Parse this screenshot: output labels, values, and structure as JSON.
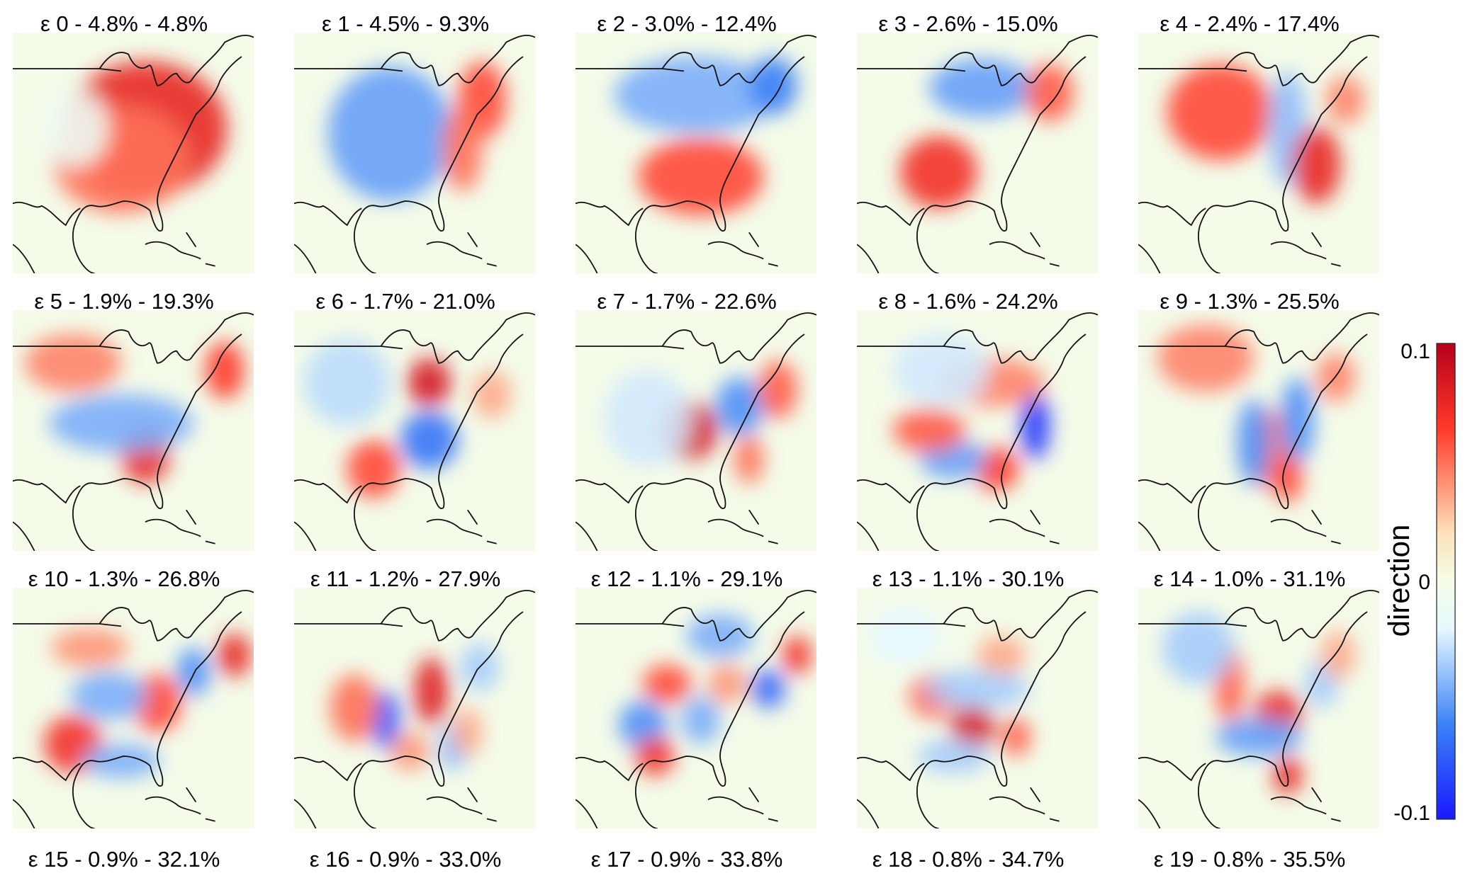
{
  "chart_data": {
    "type": "heatmap",
    "description_grid": "5 columns x 4 rows of map panels; the fourth row is cropped so only its titles are visible",
    "value_range": [
      -0.1,
      0.1
    ],
    "colormap": [
      "#1a1aff",
      "#3b82f6",
      "#e6f8ff",
      "#f5fde6",
      "#fce3bb",
      "#ff3a2a",
      "#b5001a"
    ],
    "colorbar": {
      "label": "direction",
      "tick_labels": [
        "0.1",
        "0",
        "-0.1"
      ],
      "ticks": [
        0.1,
        0,
        -0.1
      ]
    },
    "panels": [
      {
        "title": "ε 0 - 4.8% - 4.8%",
        "variance_pct": 4.8,
        "cumulative_pct": 4.8,
        "blobs": [
          [
            0.55,
            0.4,
            0.34,
            0.28,
            0.75
          ],
          [
            0.45,
            0.53,
            0.28,
            0.22,
            0.5
          ],
          [
            0.26,
            0.4,
            0.14,
            0.16,
            -0.1
          ]
        ]
      },
      {
        "title": "ε 1 - 4.5% - 9.3%",
        "variance_pct": 4.5,
        "cumulative_pct": 9.3,
        "blobs": [
          [
            0.4,
            0.42,
            0.26,
            0.28,
            -0.5
          ],
          [
            0.78,
            0.28,
            0.1,
            0.16,
            0.6
          ],
          [
            0.7,
            0.48,
            0.08,
            0.18,
            0.5
          ]
        ]
      },
      {
        "title": "ε 2 - 3.0% - 12.4%",
        "variance_pct": 3.0,
        "cumulative_pct": 12.4,
        "blobs": [
          [
            0.52,
            0.6,
            0.26,
            0.16,
            0.6
          ],
          [
            0.5,
            0.26,
            0.34,
            0.16,
            -0.45
          ],
          [
            0.82,
            0.22,
            0.1,
            0.12,
            -0.6
          ]
        ]
      },
      {
        "title": "ε 3 - 2.6% - 15.0%",
        "variance_pct": 2.6,
        "cumulative_pct": 15.0,
        "blobs": [
          [
            0.34,
            0.58,
            0.16,
            0.15,
            0.7
          ],
          [
            0.52,
            0.23,
            0.22,
            0.12,
            -0.5
          ],
          [
            0.8,
            0.25,
            0.1,
            0.12,
            0.55
          ]
        ]
      },
      {
        "title": "ε 4 - 2.4% - 17.4%",
        "variance_pct": 2.4,
        "cumulative_pct": 17.4,
        "blobs": [
          [
            0.34,
            0.33,
            0.22,
            0.2,
            0.6
          ],
          [
            0.62,
            0.4,
            0.08,
            0.24,
            -0.4
          ],
          [
            0.74,
            0.55,
            0.1,
            0.16,
            0.75
          ],
          [
            0.86,
            0.28,
            0.08,
            0.1,
            0.45
          ]
        ]
      },
      {
        "title": "ε 5 - 1.9% - 19.3%",
        "variance_pct": 1.9,
        "cumulative_pct": 19.3,
        "blobs": [
          [
            0.55,
            0.6,
            0.1,
            0.12,
            0.75
          ],
          [
            0.45,
            0.47,
            0.3,
            0.12,
            -0.45
          ],
          [
            0.25,
            0.22,
            0.2,
            0.12,
            0.45
          ],
          [
            0.88,
            0.25,
            0.08,
            0.12,
            0.65
          ]
        ]
      },
      {
        "title": "ε 6 - 1.7% - 21.0%",
        "variance_pct": 1.7,
        "cumulative_pct": 21.0,
        "blobs": [
          [
            0.56,
            0.3,
            0.09,
            0.1,
            0.85
          ],
          [
            0.56,
            0.54,
            0.12,
            0.12,
            -0.65
          ],
          [
            0.33,
            0.66,
            0.11,
            0.12,
            0.6
          ],
          [
            0.22,
            0.3,
            0.18,
            0.18,
            -0.3
          ],
          [
            0.82,
            0.35,
            0.08,
            0.1,
            0.35
          ]
        ]
      },
      {
        "title": "ε 7 - 1.7% - 22.6%",
        "variance_pct": 1.7,
        "cumulative_pct": 22.6,
        "blobs": [
          [
            0.47,
            0.5,
            0.12,
            0.12,
            0.85
          ],
          [
            0.68,
            0.4,
            0.1,
            0.12,
            -0.55
          ],
          [
            0.84,
            0.33,
            0.08,
            0.12,
            0.55
          ],
          [
            0.72,
            0.62,
            0.06,
            0.1,
            0.5
          ],
          [
            0.3,
            0.45,
            0.18,
            0.2,
            -0.25
          ]
        ]
      },
      {
        "title": "ε 8 - 1.6% - 24.2%",
        "variance_pct": 1.6,
        "cumulative_pct": 24.2,
        "blobs": [
          [
            0.74,
            0.48,
            0.06,
            0.14,
            -0.9
          ],
          [
            0.58,
            0.66,
            0.09,
            0.09,
            0.65
          ],
          [
            0.4,
            0.62,
            0.14,
            0.08,
            -0.5
          ],
          [
            0.3,
            0.5,
            0.15,
            0.09,
            0.55
          ],
          [
            0.56,
            0.3,
            0.22,
            0.1,
            0.45
          ],
          [
            0.35,
            0.25,
            0.2,
            0.15,
            -0.25
          ]
        ]
      },
      {
        "title": "ε 9 - 1.3% - 25.5%",
        "variance_pct": 1.3,
        "cumulative_pct": 25.5,
        "blobs": [
          [
            0.55,
            0.58,
            0.08,
            0.16,
            0.5
          ],
          [
            0.48,
            0.55,
            0.07,
            0.18,
            -0.55
          ],
          [
            0.66,
            0.46,
            0.07,
            0.18,
            -0.55
          ],
          [
            0.62,
            0.7,
            0.06,
            0.1,
            0.6
          ],
          [
            0.28,
            0.2,
            0.2,
            0.14,
            0.45
          ],
          [
            0.82,
            0.28,
            0.08,
            0.1,
            0.45
          ]
        ]
      },
      {
        "title": "ε 10 - 1.3% - 26.8%",
        "variance_pct": 1.3,
        "cumulative_pct": 26.8,
        "blobs": [
          [
            0.25,
            0.65,
            0.12,
            0.12,
            0.7
          ],
          [
            0.6,
            0.48,
            0.1,
            0.12,
            0.6
          ],
          [
            0.4,
            0.45,
            0.16,
            0.1,
            -0.45
          ],
          [
            0.45,
            0.72,
            0.16,
            0.07,
            -0.45
          ],
          [
            0.75,
            0.35,
            0.07,
            0.1,
            -0.55
          ],
          [
            0.92,
            0.28,
            0.07,
            0.09,
            0.75
          ],
          [
            0.32,
            0.25,
            0.16,
            0.08,
            0.4
          ]
        ]
      },
      {
        "title": "ε 11 - 1.2% - 27.9%",
        "variance_pct": 1.2,
        "cumulative_pct": 27.9,
        "blobs": [
          [
            0.38,
            0.55,
            0.06,
            0.12,
            -0.75
          ],
          [
            0.57,
            0.43,
            0.07,
            0.14,
            0.8
          ],
          [
            0.25,
            0.5,
            0.1,
            0.14,
            0.5
          ],
          [
            0.48,
            0.68,
            0.08,
            0.08,
            0.4
          ],
          [
            0.66,
            0.66,
            0.06,
            0.1,
            -0.4
          ],
          [
            0.77,
            0.33,
            0.08,
            0.1,
            -0.35
          ],
          [
            0.72,
            0.6,
            0.06,
            0.1,
            0.35
          ]
        ]
      },
      {
        "title": "ε 12 - 1.1% - 29.1%",
        "variance_pct": 1.1,
        "cumulative_pct": 29.1,
        "blobs": [
          [
            0.28,
            0.57,
            0.1,
            0.1,
            -0.55
          ],
          [
            0.33,
            0.7,
            0.08,
            0.08,
            0.7
          ],
          [
            0.38,
            0.4,
            0.1,
            0.08,
            0.6
          ],
          [
            0.52,
            0.55,
            0.08,
            0.1,
            -0.45
          ],
          [
            0.63,
            0.4,
            0.08,
            0.08,
            0.4
          ],
          [
            0.8,
            0.42,
            0.07,
            0.08,
            -0.7
          ],
          [
            0.92,
            0.28,
            0.06,
            0.08,
            0.7
          ],
          [
            0.6,
            0.2,
            0.14,
            0.09,
            -0.45
          ]
        ]
      },
      {
        "title": "ε 13 - 1.1% - 30.1%",
        "variance_pct": 1.1,
        "cumulative_pct": 30.1,
        "blobs": [
          [
            0.48,
            0.58,
            0.09,
            0.1,
            0.85
          ],
          [
            0.32,
            0.45,
            0.1,
            0.09,
            0.55
          ],
          [
            0.66,
            0.62,
            0.06,
            0.08,
            0.55
          ],
          [
            0.5,
            0.42,
            0.22,
            0.08,
            -0.35
          ],
          [
            0.4,
            0.7,
            0.15,
            0.07,
            -0.35
          ],
          [
            0.6,
            0.28,
            0.1,
            0.08,
            0.35
          ],
          [
            0.2,
            0.2,
            0.15,
            0.12,
            -0.2
          ]
        ]
      },
      {
        "title": "ε 14 - 1.0% - 31.1%",
        "variance_pct": 1.0,
        "cumulative_pct": 31.1,
        "blobs": [
          [
            0.58,
            0.52,
            0.1,
            0.09,
            0.75
          ],
          [
            0.38,
            0.4,
            0.06,
            0.16,
            0.55
          ],
          [
            0.62,
            0.78,
            0.06,
            0.08,
            0.75
          ],
          [
            0.5,
            0.62,
            0.18,
            0.08,
            -0.5
          ],
          [
            0.25,
            0.25,
            0.15,
            0.15,
            -0.35
          ],
          [
            0.76,
            0.4,
            0.07,
            0.1,
            -0.35
          ],
          [
            0.83,
            0.28,
            0.07,
            0.1,
            0.35
          ]
        ]
      },
      {
        "title": "ε 15 - 0.9% - 32.1%",
        "variance_pct": 0.9,
        "cumulative_pct": 32.1,
        "blobs": []
      },
      {
        "title": "ε 16 - 0.9% - 33.0%",
        "variance_pct": 0.9,
        "cumulative_pct": 33.0,
        "blobs": []
      },
      {
        "title": "ε 17 - 0.9% - 33.8%",
        "variance_pct": 0.9,
        "cumulative_pct": 33.8,
        "blobs": []
      },
      {
        "title": "ε 18 - 0.8% - 34.7%",
        "variance_pct": 0.8,
        "cumulative_pct": 34.7,
        "blobs": []
      },
      {
        "title": "ε 19 - 0.8% - 35.5%",
        "variance_pct": 0.8,
        "cumulative_pct": 35.5,
        "blobs": []
      }
    ]
  }
}
